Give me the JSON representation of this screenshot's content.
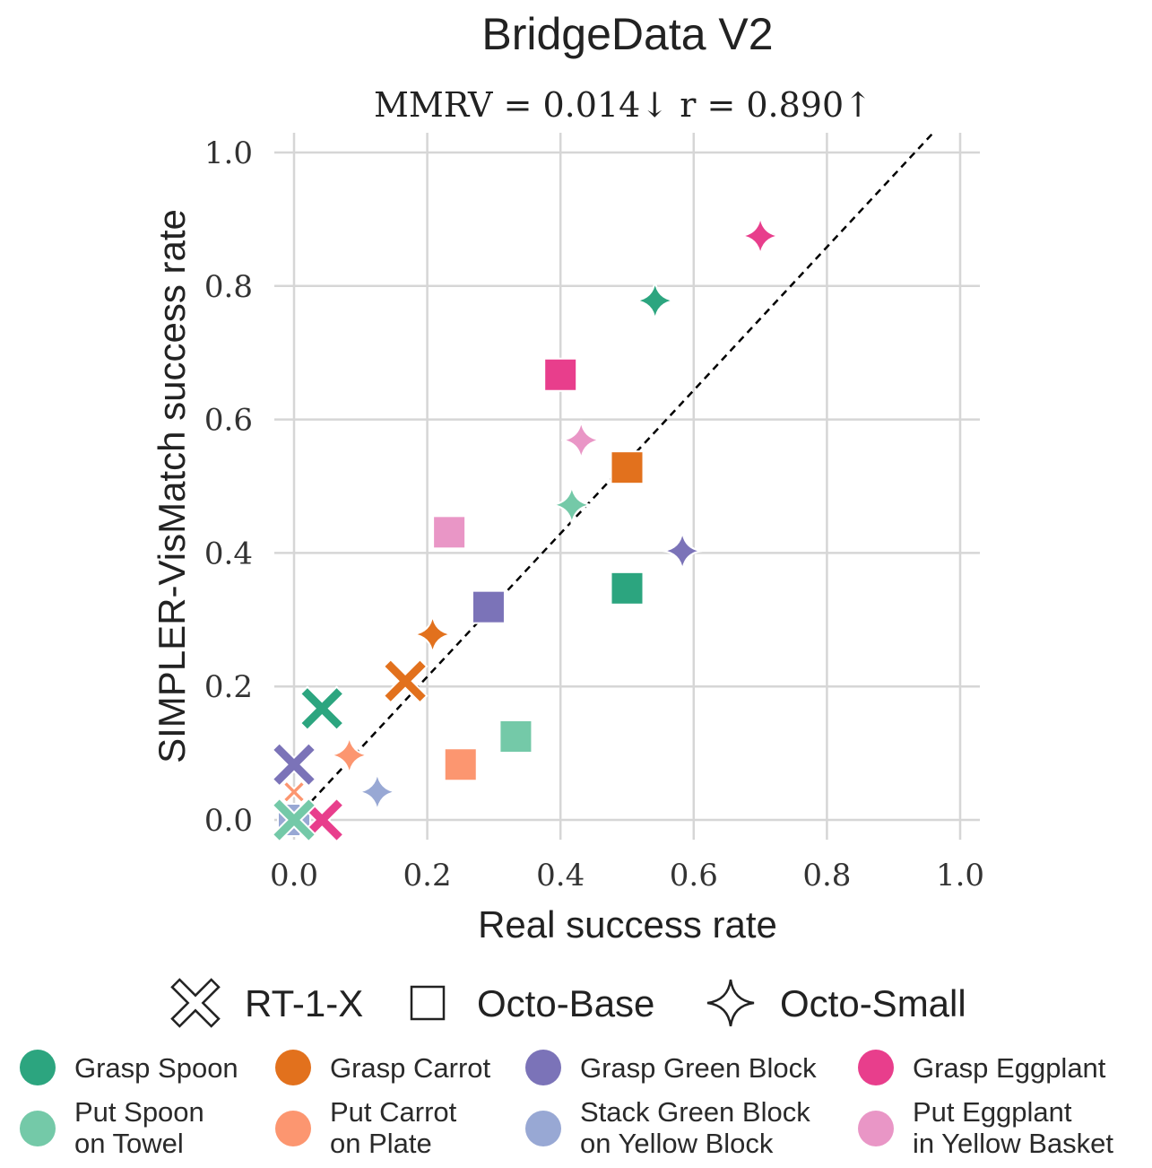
{
  "chart_data": {
    "type": "scatter",
    "title": "BridgeData V2",
    "subtitle": "MMRV = 0.014↓  r = 0.890↑",
    "metrics": {
      "MMRV": 0.014,
      "MMRV_direction": "lower is better",
      "r": 0.89,
      "r_direction": "higher is better"
    },
    "xlabel": "Real success rate",
    "ylabel": "SIMPLER-VisMatch success rate",
    "xlim": [
      0.0,
      1.0
    ],
    "ylim": [
      0.0,
      1.0
    ],
    "xticks": [
      "0.0",
      "0.2",
      "0.4",
      "0.6",
      "0.8",
      "1.0"
    ],
    "yticks": [
      "0.0",
      "0.2",
      "0.4",
      "0.6",
      "0.8",
      "1.0"
    ],
    "grid": true,
    "reference_line": {
      "type": "y=x",
      "style": "dashed",
      "color": "#000000"
    },
    "models": [
      {
        "name": "RT-1-X",
        "marker": "x"
      },
      {
        "name": "Octo-Base",
        "marker": "square"
      },
      {
        "name": "Octo-Small",
        "marker": "star4"
      }
    ],
    "tasks": [
      {
        "name": "Grasp Spoon",
        "label_lines": [
          "Grasp Spoon"
        ],
        "color": "#2ca57f"
      },
      {
        "name": "Put Spoon on Towel",
        "label_lines": [
          "Put Spoon",
          "on Towel"
        ],
        "color": "#74c9a8"
      },
      {
        "name": "Grasp Carrot",
        "label_lines": [
          "Grasp Carrot"
        ],
        "color": "#e2711d"
      },
      {
        "name": "Put Carrot on Plate",
        "label_lines": [
          "Put Carrot",
          "on Plate"
        ],
        "color": "#fc9670"
      },
      {
        "name": "Grasp Green Block",
        "label_lines": [
          "Grasp Green Block"
        ],
        "color": "#7b73b8"
      },
      {
        "name": "Stack Green Block on Yellow Block",
        "label_lines": [
          "Stack Green Block",
          "on Yellow Block"
        ],
        "color": "#98a8d4"
      },
      {
        "name": "Grasp Eggplant",
        "label_lines": [
          "Grasp Eggplant"
        ],
        "color": "#e83e8c"
      },
      {
        "name": "Put Eggplant in Yellow Basket",
        "label_lines": [
          "Put Eggplant",
          "in Yellow Basket"
        ],
        "color": "#e996c6"
      }
    ],
    "points": [
      {
        "task": "Put Eggplant in Yellow Basket",
        "model": "RT-1-X",
        "x": 0.0,
        "y": 0.0
      },
      {
        "task": "Stack Green Block on Yellow Block",
        "model": "RT-1-X",
        "x": 0.0,
        "y": 0.0
      },
      {
        "task": "Stack Green Block on Yellow Block",
        "model": "Octo-Base",
        "x": 0.0,
        "y": 0.0
      },
      {
        "task": "Put Carrot on Plate",
        "model": "RT-1-X",
        "x": 0.0,
        "y": 0.042
      },
      {
        "task": "Grasp Eggplant",
        "model": "RT-1-X",
        "x": 0.042,
        "y": 0.0
      },
      {
        "task": "Grasp Green Block",
        "model": "RT-1-X",
        "x": 0.0,
        "y": 0.083
      },
      {
        "task": "Grasp Spoon",
        "model": "RT-1-X",
        "x": 0.042,
        "y": 0.167
      },
      {
        "task": "Put Spoon on Towel",
        "model": "RT-1-X",
        "x": 0.0,
        "y": 0.0
      },
      {
        "task": "Grasp Carrot",
        "model": "RT-1-X",
        "x": 0.167,
        "y": 0.208
      },
      {
        "task": "Put Carrot on Plate",
        "model": "Octo-Small",
        "x": 0.083,
        "y": 0.097
      },
      {
        "task": "Stack Green Block on Yellow Block",
        "model": "Octo-Small",
        "x": 0.125,
        "y": 0.042
      },
      {
        "task": "Grasp Carrot",
        "model": "Octo-Small",
        "x": 0.208,
        "y": 0.278
      },
      {
        "task": "Put Carrot on Plate",
        "model": "Octo-Base",
        "x": 0.25,
        "y": 0.083
      },
      {
        "task": "Grasp Green Block",
        "model": "Octo-Base",
        "x": 0.292,
        "y": 0.319
      },
      {
        "task": "Put Spoon on Towel",
        "model": "Octo-Base",
        "x": 0.333,
        "y": 0.125
      },
      {
        "task": "Put Eggplant in Yellow Basket",
        "model": "Octo-Base",
        "x": 0.233,
        "y": 0.431
      },
      {
        "task": "Grasp Eggplant",
        "model": "Octo-Base",
        "x": 0.4,
        "y": 0.667
      },
      {
        "task": "Put Spoon on Towel",
        "model": "Octo-Small",
        "x": 0.417,
        "y": 0.472
      },
      {
        "task": "Put Eggplant in Yellow Basket",
        "model": "Octo-Small",
        "x": 0.431,
        "y": 0.569
      },
      {
        "task": "Grasp Carrot",
        "model": "Octo-Base",
        "x": 0.5,
        "y": 0.528
      },
      {
        "task": "Grasp Spoon",
        "model": "Octo-Base",
        "x": 0.5,
        "y": 0.347
      },
      {
        "task": "Grasp Spoon",
        "model": "Octo-Small",
        "x": 0.542,
        "y": 0.778
      },
      {
        "task": "Grasp Green Block",
        "model": "Octo-Small",
        "x": 0.583,
        "y": 0.403
      },
      {
        "task": "Grasp Eggplant",
        "model": "Octo-Small",
        "x": 0.7,
        "y": 0.875
      }
    ],
    "legend_placement": "bottom"
  }
}
